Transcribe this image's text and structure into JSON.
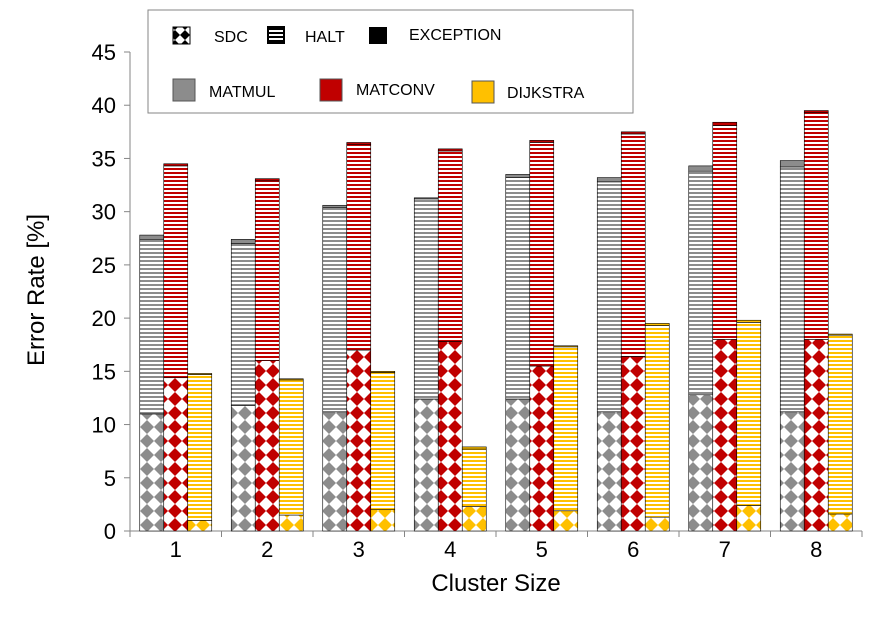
{
  "chart_data": {
    "type": "bar",
    "stacked": true,
    "grouped": true,
    "title": "",
    "xlabel": "Cluster Size",
    "ylabel": "Error Rate [%]",
    "ylim": [
      0,
      45
    ],
    "yticks": [
      0,
      5,
      10,
      15,
      20,
      25,
      30,
      35,
      40,
      45
    ],
    "grid": false,
    "legend_position": "top",
    "categories": [
      "1",
      "2",
      "3",
      "4",
      "5",
      "6",
      "7",
      "8"
    ],
    "stack_components": [
      "SDC",
      "HALT",
      "EXCEPTION"
    ],
    "legend": {
      "patterns": [
        "SDC",
        "HALT",
        "EXCEPTION"
      ],
      "benchmarks": [
        "MATMUL",
        "MATCONV",
        "DIJKSTRA"
      ]
    },
    "colors": {
      "MATMUL": "#8c8c8c",
      "MATCONV": "#c00000",
      "DIJKSTRA": "#ffc000",
      "EXCEPTION": "#000000"
    },
    "series": [
      {
        "name": "MATMUL",
        "sdc": [
          11.0,
          11.8,
          11.2,
          12.4,
          12.4,
          11.2,
          12.8,
          11.2
        ],
        "halt": [
          16.4,
          15.2,
          19.2,
          18.8,
          20.8,
          21.6,
          21.0,
          23.0
        ],
        "exception": [
          0.4,
          0.4,
          0.2,
          0.1,
          0.3,
          0.4,
          0.5,
          0.6
        ]
      },
      {
        "name": "MATCONV",
        "sdc": [
          14.4,
          16.0,
          17.0,
          17.8,
          15.5,
          16.4,
          18.0,
          18.0
        ],
        "halt": [
          19.9,
          16.9,
          19.3,
          17.9,
          21.0,
          20.9,
          20.1,
          21.3
        ],
        "exception": [
          0.2,
          0.2,
          0.2,
          0.2,
          0.2,
          0.2,
          0.3,
          0.2
        ]
      },
      {
        "name": "DIJKSTRA",
        "sdc": [
          1.0,
          1.5,
          2.0,
          2.3,
          1.9,
          1.3,
          2.4,
          1.6
        ],
        "halt": [
          13.7,
          12.7,
          12.9,
          5.4,
          15.4,
          18.0,
          17.2,
          16.8
        ],
        "exception": [
          0.1,
          0.1,
          0.1,
          0.2,
          0.1,
          0.2,
          0.2,
          0.1
        ]
      }
    ]
  }
}
